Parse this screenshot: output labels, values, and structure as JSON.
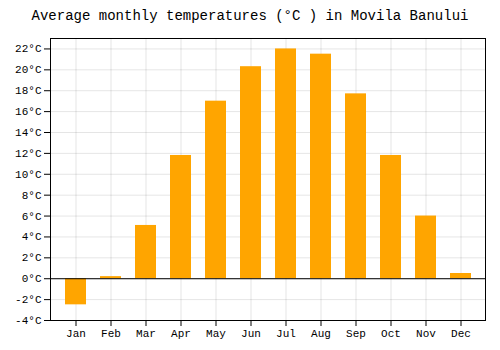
{
  "chart_data": {
    "type": "bar",
    "title": "Average monthly temperatures (°C ) in Movila Banului",
    "categories": [
      "Jan",
      "Feb",
      "Mar",
      "Apr",
      "May",
      "Jun",
      "Jul",
      "Aug",
      "Sep",
      "Oct",
      "Nov",
      "Dec"
    ],
    "values": [
      -2.5,
      0.2,
      5.1,
      11.8,
      17.0,
      20.3,
      22.0,
      21.5,
      17.7,
      11.8,
      6.0,
      0.5
    ],
    "color": "#FFA500",
    "ylim": [
      -4,
      23
    ],
    "yticks": [
      {
        "value": -4,
        "label": "-4°C"
      },
      {
        "value": -2,
        "label": "-2°C"
      },
      {
        "value": 0,
        "label": "0°C"
      },
      {
        "value": 2,
        "label": "2°C"
      },
      {
        "value": 4,
        "label": "4°C"
      },
      {
        "value": 6,
        "label": "6°C"
      },
      {
        "value": 8,
        "label": "8°C"
      },
      {
        "value": 10,
        "label": "10°C"
      },
      {
        "value": 12,
        "label": "12°C"
      },
      {
        "value": 14,
        "label": "14°C"
      },
      {
        "value": 16,
        "label": "16°C"
      },
      {
        "value": 18,
        "label": "18°C"
      },
      {
        "value": 20,
        "label": "20°C"
      },
      {
        "value": 22,
        "label": "22°C"
      }
    ],
    "grid": true
  }
}
